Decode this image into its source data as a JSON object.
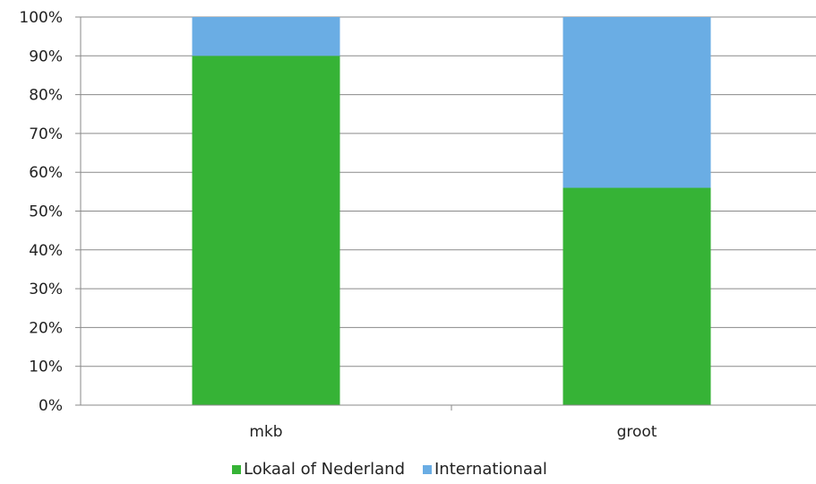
{
  "chart_data": {
    "type": "bar",
    "stacked": true,
    "categories": [
      "mkb",
      "groot"
    ],
    "series": [
      {
        "name": "Lokaal of Nederland",
        "values": [
          90,
          56
        ],
        "color": "#36b336"
      },
      {
        "name": "Internationaal",
        "values": [
          10,
          44
        ],
        "color": "#6aade4"
      }
    ],
    "ylim": [
      0,
      100
    ],
    "y_ticks": [
      "0%",
      "10%",
      "20%",
      "30%",
      "40%",
      "50%",
      "60%",
      "70%",
      "80%",
      "90%",
      "100%"
    ],
    "grid": true,
    "legend_position": "bottom",
    "title": "",
    "xlabel": "",
    "ylabel": ""
  }
}
